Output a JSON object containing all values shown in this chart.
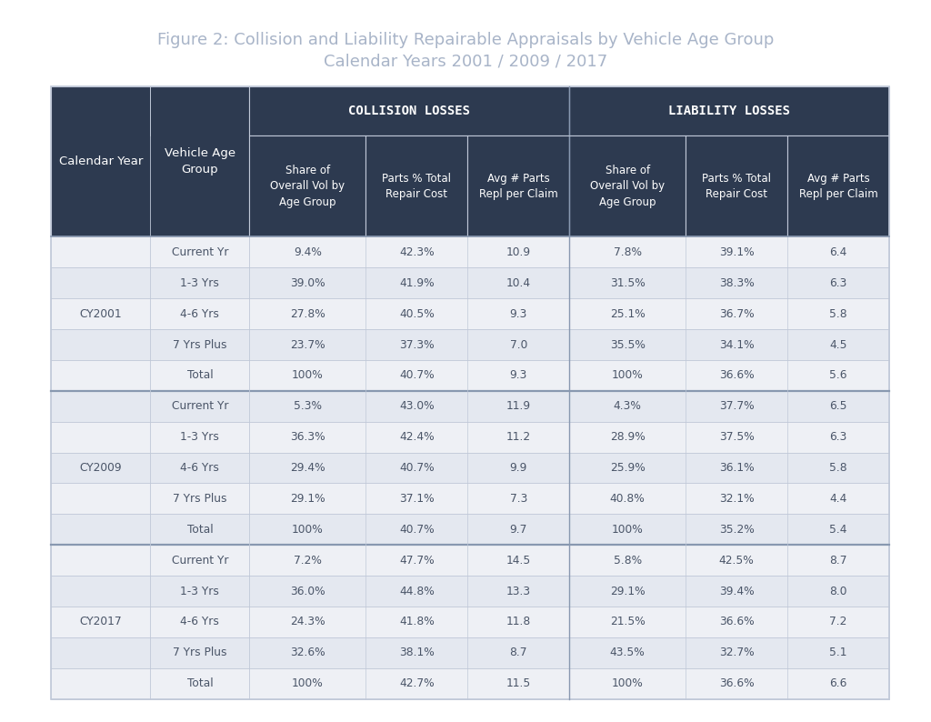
{
  "title_line1": "Figure 2: Collision and Liability Repairable Appraisals by Vehicle Age Group",
  "title_line2": "Calendar Years 2001 / 2009 / 2017",
  "title_color": "#a8b4c8",
  "header_bg": "#2d3a50",
  "header_text_color": "#ffffff",
  "row_bg_even": "#eef0f5",
  "row_bg_odd": "#e4e8f0",
  "cell_text_color": "#4a5568",
  "border_color": "#c0c8d8",
  "sep_line_color": "#8898b0",
  "groups": [
    "CY2001",
    "CY2009",
    "CY2017"
  ],
  "row_labels": [
    "Current Yr",
    "1-3 Yrs",
    "4-6 Yrs",
    "7 Yrs Plus",
    "Total"
  ],
  "data": {
    "CY2001": [
      [
        "9.4%",
        "42.3%",
        "10.9",
        "7.8%",
        "39.1%",
        "6.4"
      ],
      [
        "39.0%",
        "41.9%",
        "10.4",
        "31.5%",
        "38.3%",
        "6.3"
      ],
      [
        "27.8%",
        "40.5%",
        "9.3",
        "25.1%",
        "36.7%",
        "5.8"
      ],
      [
        "23.7%",
        "37.3%",
        "7.0",
        "35.5%",
        "34.1%",
        "4.5"
      ],
      [
        "100%",
        "40.7%",
        "9.3",
        "100%",
        "36.6%",
        "5.6"
      ]
    ],
    "CY2009": [
      [
        "5.3%",
        "43.0%",
        "11.9",
        "4.3%",
        "37.7%",
        "6.5"
      ],
      [
        "36.3%",
        "42.4%",
        "11.2",
        "28.9%",
        "37.5%",
        "6.3"
      ],
      [
        "29.4%",
        "40.7%",
        "9.9",
        "25.9%",
        "36.1%",
        "5.8"
      ],
      [
        "29.1%",
        "37.1%",
        "7.3",
        "40.8%",
        "32.1%",
        "4.4"
      ],
      [
        "100%",
        "40.7%",
        "9.7",
        "100%",
        "35.2%",
        "5.4"
      ]
    ],
    "CY2017": [
      [
        "7.2%",
        "47.7%",
        "14.5",
        "5.8%",
        "42.5%",
        "8.7"
      ],
      [
        "36.0%",
        "44.8%",
        "13.3",
        "29.1%",
        "39.4%",
        "8.0"
      ],
      [
        "24.3%",
        "41.8%",
        "11.8",
        "21.5%",
        "36.6%",
        "7.2"
      ],
      [
        "32.6%",
        "38.1%",
        "8.7",
        "43.5%",
        "32.7%",
        "5.1"
      ],
      [
        "100%",
        "42.7%",
        "11.5",
        "100%",
        "36.6%",
        "6.6"
      ]
    ]
  }
}
